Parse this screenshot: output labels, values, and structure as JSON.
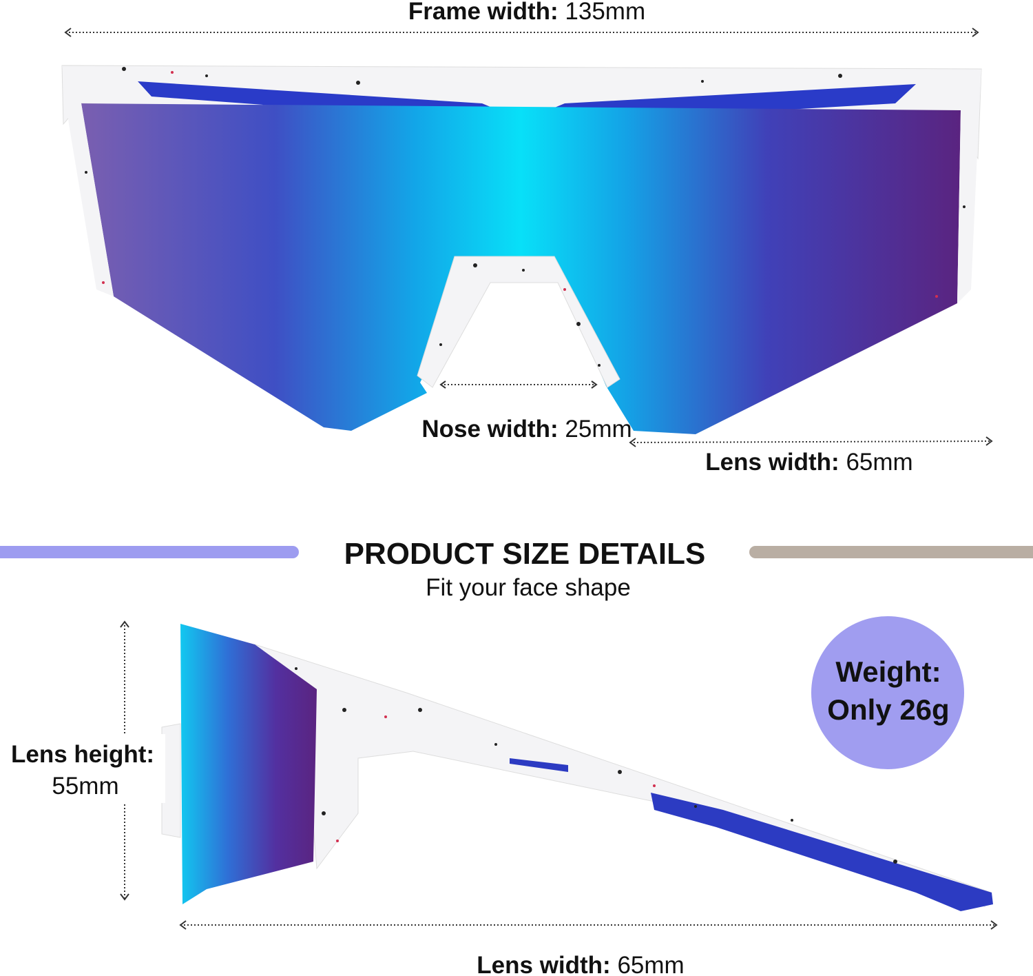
{
  "front_view": {
    "frame_width": {
      "label": "Frame width:",
      "value": "135mm"
    },
    "nose_width": {
      "label": "Nose width:",
      "value": "25mm"
    },
    "lens_width": {
      "label": "Lens width:",
      "value": "65mm"
    }
  },
  "section": {
    "title": "PRODUCT SIZE DETAILS",
    "subtitle": "Fit your face shape"
  },
  "side_view": {
    "lens_height": {
      "label": "Lens height:",
      "value": "55mm"
    },
    "lens_width": {
      "label": "Lens width:",
      "value": "65mm"
    }
  },
  "weight_badge": {
    "label": "Weight:",
    "value": "Only 26g"
  }
}
